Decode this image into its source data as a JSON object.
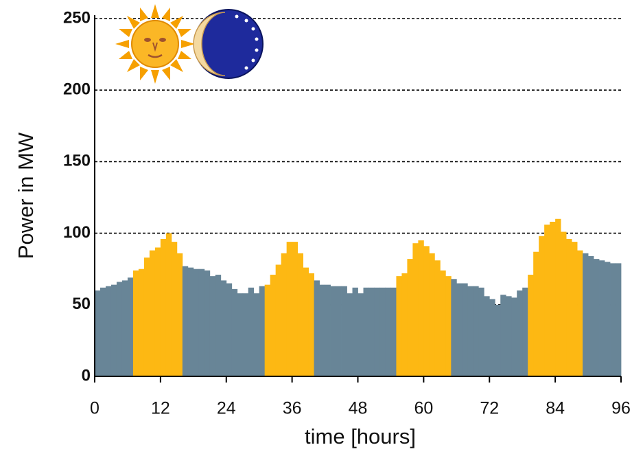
{
  "chart_data": {
    "type": "bar",
    "x": [
      0,
      1,
      2,
      3,
      4,
      5,
      6,
      7,
      8,
      9,
      10,
      11,
      12,
      13,
      14,
      15,
      16,
      17,
      18,
      19,
      20,
      21,
      22,
      23,
      24,
      25,
      26,
      27,
      28,
      29,
      30,
      31,
      32,
      33,
      34,
      35,
      36,
      37,
      38,
      39,
      40,
      41,
      42,
      43,
      44,
      45,
      46,
      47,
      48,
      49,
      50,
      51,
      52,
      53,
      54,
      55,
      56,
      57,
      58,
      59,
      60,
      61,
      62,
      63,
      64,
      65,
      66,
      67,
      68,
      69,
      70,
      71,
      72,
      73,
      74,
      75,
      76,
      77,
      78,
      79,
      80,
      81,
      82,
      83,
      84,
      85,
      86,
      87,
      88,
      89,
      90,
      91,
      92,
      93,
      94,
      95
    ],
    "values": [
      60,
      62,
      63,
      64,
      66,
      67,
      69,
      74,
      75,
      83,
      88,
      90,
      96,
      100,
      94,
      86,
      77,
      76,
      75,
      75,
      74,
      70,
      71,
      67,
      65,
      61,
      58,
      58,
      62,
      58,
      63,
      64,
      71,
      78,
      86,
      94,
      94,
      86,
      76,
      72,
      67,
      64,
      64,
      63,
      63,
      63,
      58,
      62,
      58,
      62,
      62,
      62,
      62,
      62,
      62,
      70,
      72,
      82,
      93,
      95,
      91,
      86,
      81,
      74,
      70,
      68,
      65,
      65,
      63,
      63,
      62,
      56,
      54,
      50,
      57,
      56,
      55,
      60,
      62,
      71,
      87,
      98,
      106,
      108,
      110,
      101,
      96,
      94,
      88,
      86,
      84,
      82,
      81,
      80,
      79,
      79
    ],
    "colors": [
      "#688597",
      "#688597",
      "#688597",
      "#688597",
      "#688597",
      "#688597",
      "#688597",
      "#fdb813",
      "#fdb813",
      "#fdb813",
      "#fdb813",
      "#fdb813",
      "#fdb813",
      "#fdb813",
      "#fdb813",
      "#fdb813",
      "#688597",
      "#688597",
      "#688597",
      "#688597",
      "#688597",
      "#688597",
      "#688597",
      "#688597",
      "#688597",
      "#688597",
      "#688597",
      "#688597",
      "#688597",
      "#688597",
      "#688597",
      "#fdb813",
      "#fdb813",
      "#fdb813",
      "#fdb813",
      "#fdb813",
      "#fdb813",
      "#fdb813",
      "#fdb813",
      "#fdb813",
      "#688597",
      "#688597",
      "#688597",
      "#688597",
      "#688597",
      "#688597",
      "#688597",
      "#688597",
      "#688597",
      "#688597",
      "#688597",
      "#688597",
      "#688597",
      "#688597",
      "#688597",
      "#fdb813",
      "#fdb813",
      "#fdb813",
      "#fdb813",
      "#fdb813",
      "#fdb813",
      "#fdb813",
      "#fdb813",
      "#fdb813",
      "#fdb813",
      "#688597",
      "#688597",
      "#688597",
      "#688597",
      "#688597",
      "#688597",
      "#688597",
      "#688597",
      "#688597",
      "#688597",
      "#688597",
      "#688597",
      "#688597",
      "#688597",
      "#fdb813",
      "#fdb813",
      "#fdb813",
      "#fdb813",
      "#fdb813",
      "#fdb813",
      "#fdb813",
      "#fdb813",
      "#fdb813",
      "#fdb813",
      "#688597",
      "#688597",
      "#688597",
      "#688597",
      "#688597",
      "#688597",
      "#688597"
    ],
    "xlim": [
      0,
      96
    ],
    "xticks": [
      0,
      12,
      24,
      36,
      48,
      60,
      72,
      84,
      96
    ],
    "ylim": [
      0,
      250
    ],
    "yticks": [
      0,
      50,
      100,
      150,
      200,
      250
    ],
    "grid": true,
    "x_label": "time [hours]",
    "y_label": "Power in MW"
  }
}
